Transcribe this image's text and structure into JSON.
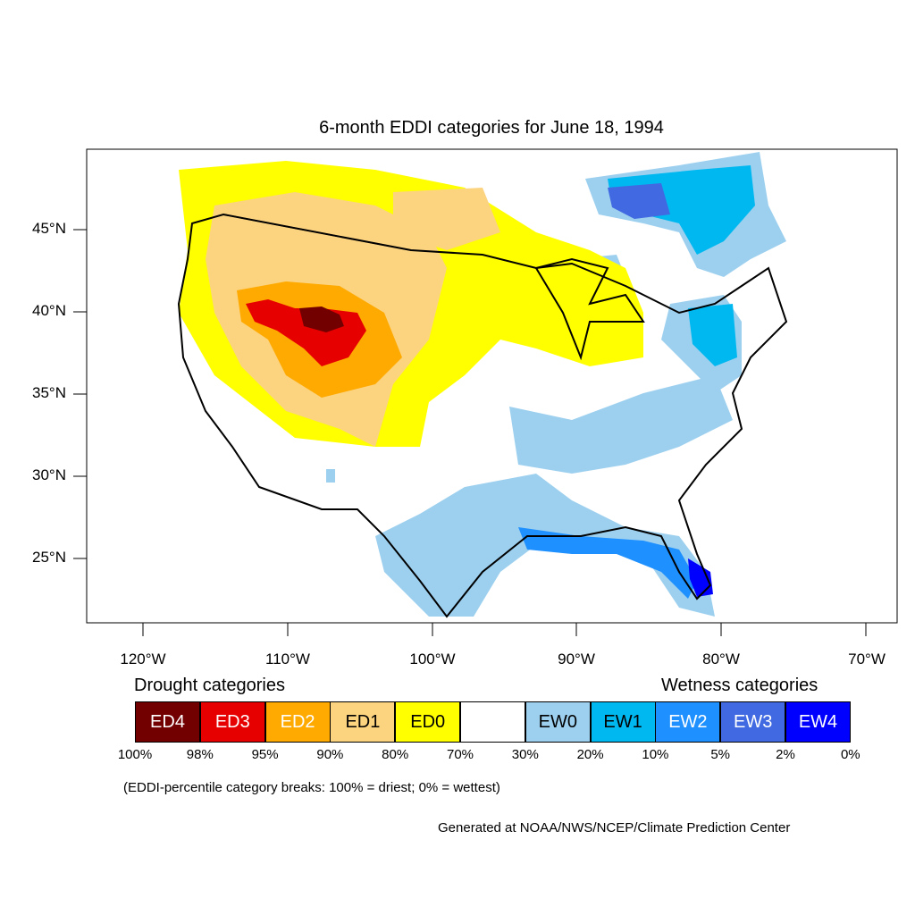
{
  "title": "6-month EDDI categories for June 18, 1994",
  "lat_labels": [
    "45°N",
    "40°N",
    "35°N",
    "30°N",
    "25°N"
  ],
  "lon_labels": [
    "120°W",
    "110°W",
    "100°W",
    "90°W",
    "80°W",
    "70°W"
  ],
  "legend": {
    "drought_heading": "Drought categories",
    "wetness_heading": "Wetness categories",
    "categories": [
      {
        "label": "ED4",
        "color": "#730000",
        "text_color": "#ffffff"
      },
      {
        "label": "ED3",
        "color": "#e60000",
        "text_color": "#ffffff"
      },
      {
        "label": "ED2",
        "color": "#ffaa00",
        "text_color": "#ffffff"
      },
      {
        "label": "ED1",
        "color": "#fcd37f",
        "text_color": "#000000"
      },
      {
        "label": "ED0",
        "color": "#ffff00",
        "text_color": "#000000"
      },
      {
        "label": "",
        "color": "#ffffff",
        "text_color": "#000000"
      },
      {
        "label": "EW0",
        "color": "#9dd0ef",
        "text_color": "#000000"
      },
      {
        "label": "EW1",
        "color": "#00b8f0",
        "text_color": "#000000"
      },
      {
        "label": "EW2",
        "color": "#1e90ff",
        "text_color": "#ffffff"
      },
      {
        "label": "EW3",
        "color": "#4169e1",
        "text_color": "#ffffff"
      },
      {
        "label": "EW4",
        "color": "#0000ff",
        "text_color": "#ffffff"
      }
    ],
    "breaks": [
      "100%",
      "98%",
      "95%",
      "90%",
      "80%",
      "70%",
      "30%",
      "20%",
      "10%",
      "5%",
      "2%",
      "0%"
    ]
  },
  "note": "(EDDI-percentile category breaks: 100% = driest; 0% = wettest)",
  "credit": "Generated at NOAA/NWS/NCEP/Climate Prediction Center"
}
